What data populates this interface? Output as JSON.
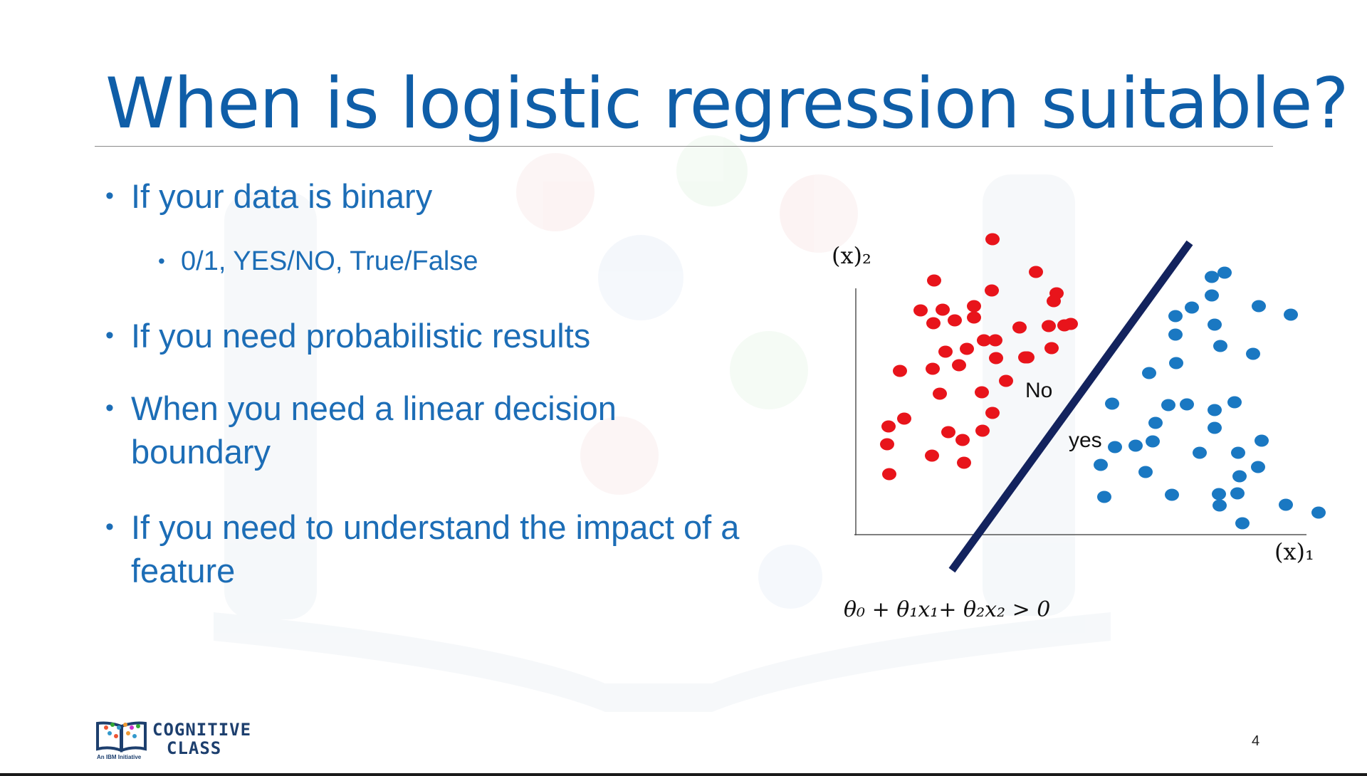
{
  "slide": {
    "title": "When is logistic regression suitable?",
    "page_number": "4"
  },
  "bullets": [
    {
      "level": 1,
      "text": "If your data is binary"
    },
    {
      "level": 2,
      "text": "0/1, YES/NO,  True/False"
    },
    {
      "level": 1,
      "text": "If you need probabilistic results"
    },
    {
      "level": 1,
      "text": "When you need a linear decision boundary"
    },
    {
      "level": 1,
      "text": "If you need to understand the impact of a feature"
    }
  ],
  "diagram": {
    "y_axis_label": "(x)₂",
    "x_axis_label": "(x)₁",
    "region_labels": {
      "no": "No",
      "yes": "yes"
    },
    "equation": "θ₀ + θ₁x₁+ θ₂x₂ > 0",
    "colors": {
      "class_no": "#e8141b",
      "class_yes": "#1a78c2",
      "boundary": "#13235e",
      "title": "#0f5ea8",
      "text": "#1c6db6"
    }
  },
  "footer": {
    "logo_line1": "COGNITIVE",
    "logo_line2": "CLASS",
    "logo_tagline": "An IBM Initiative"
  }
}
